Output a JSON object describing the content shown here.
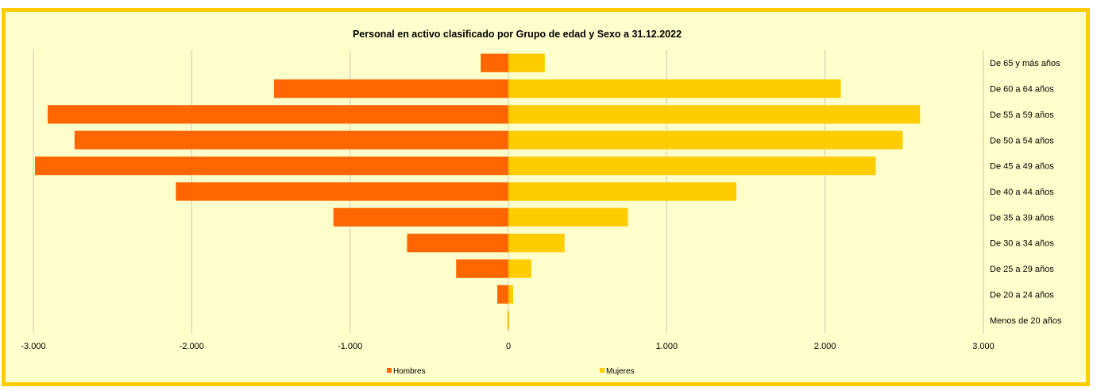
{
  "chart_data": {
    "type": "bar",
    "orientation": "horizontal",
    "title": "Personal en activo clasificado por Grupo de edad y Sexo a 31.12.2022",
    "xlabel": "",
    "ylabel": "",
    "xlim": [
      -3000,
      3000
    ],
    "x_ticks": [
      -3000,
      -2000,
      -1000,
      0,
      1000,
      2000,
      3000
    ],
    "x_tick_labels": [
      "-3.000",
      "-2.000",
      "-1.000",
      "0",
      "1.000",
      "2.000",
      "3.000"
    ],
    "grid": true,
    "legend_position": "bottom",
    "categories": [
      "De 65 y más años",
      "De 60 a 64 años",
      "De 55 a 59 años",
      "De 50 a 54 años",
      "De 45 a 49 años",
      "De 40 a 44 años",
      "De 35 a 39 años",
      "De 30 a 34 años",
      "De 25 a 29 años",
      "De 20 a 24 años",
      "Menos de 20 años"
    ],
    "series": [
      {
        "name": "Hombres",
        "color": "#ff6600",
        "values": [
          -175,
          -1480,
          -2910,
          -2740,
          -2990,
          -2100,
          -1105,
          -640,
          -330,
          -70,
          -4
        ]
      },
      {
        "name": "Mujeres",
        "color": "#ffcc00",
        "values": [
          230,
          2100,
          2600,
          2490,
          2320,
          1440,
          755,
          355,
          145,
          30,
          3
        ]
      }
    ]
  }
}
